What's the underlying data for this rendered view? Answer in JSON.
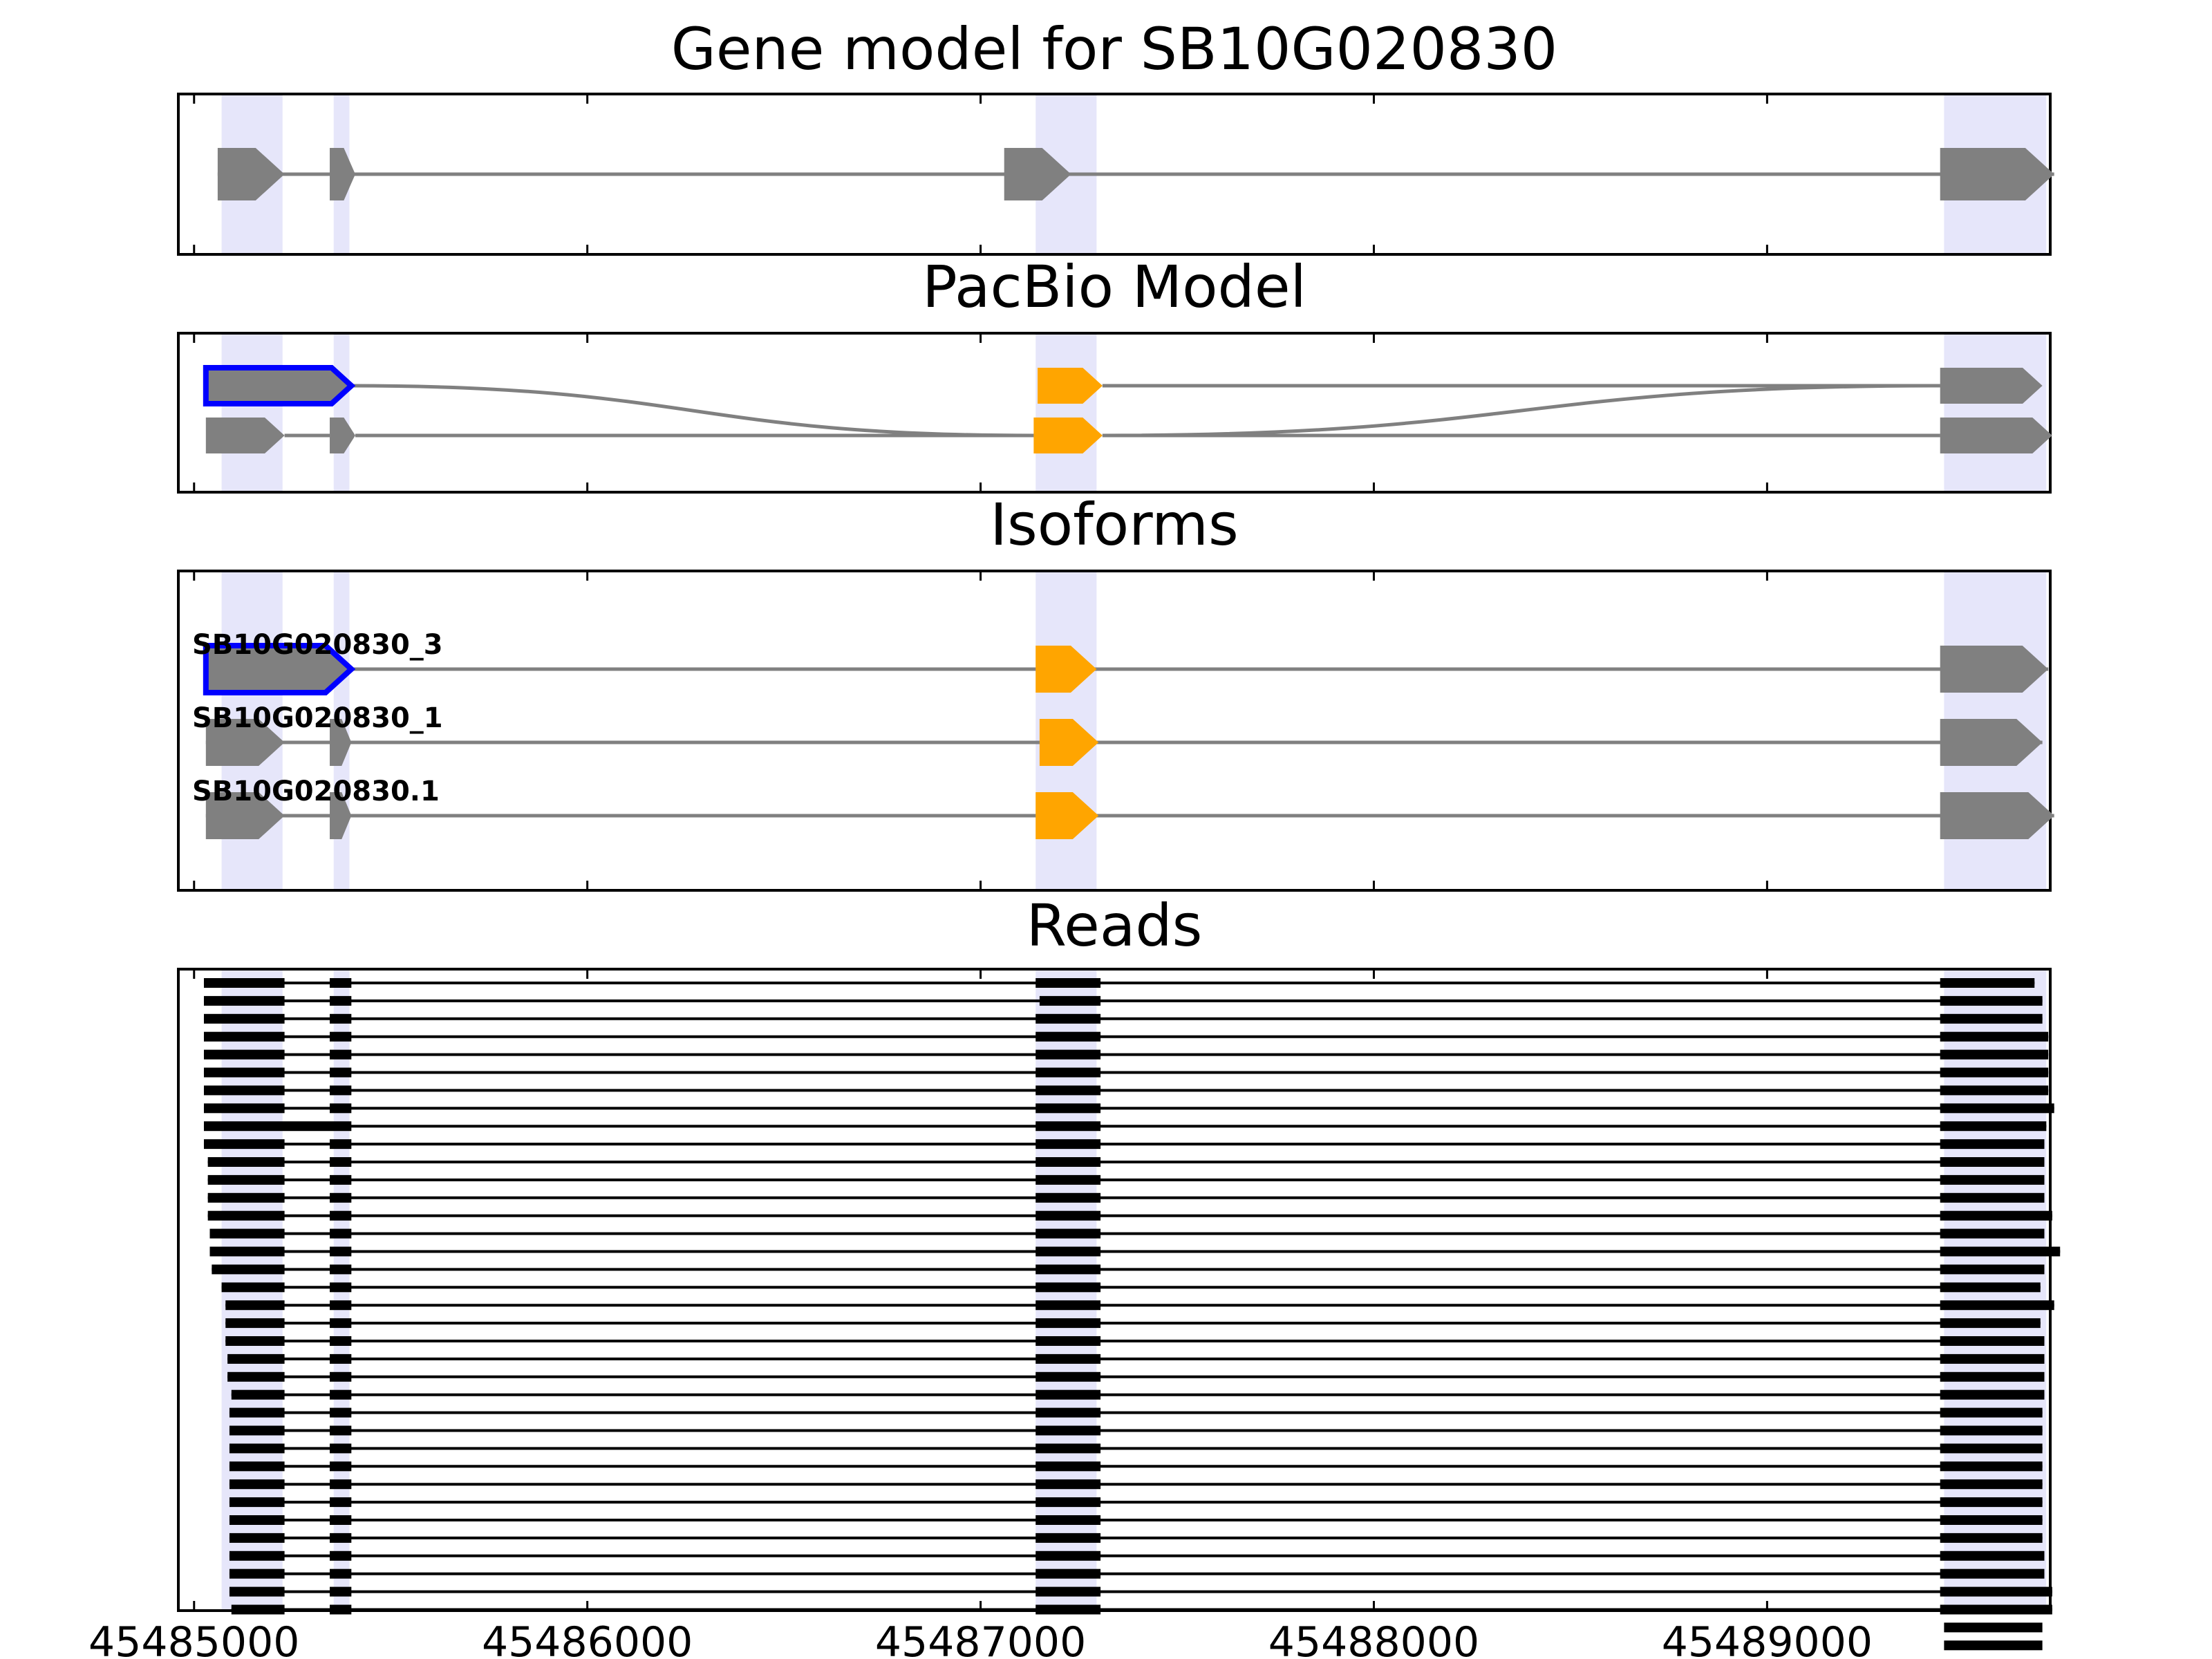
{
  "figure": {
    "x_axis": {
      "min": 45484960,
      "max": 45489720,
      "ticks": [
        45485000,
        45486000,
        45487000,
        45488000,
        45489000
      ],
      "tick_labels": [
        "45485000",
        "45486000",
        "45487000",
        "45488000",
        "45489000"
      ]
    },
    "exon_regions": [
      [
        45485070,
        45485225
      ],
      [
        45485355,
        45485395
      ],
      [
        45487140,
        45487295
      ],
      [
        45489450,
        45489710
      ]
    ],
    "colors": {
      "gene": "#808080",
      "alt_exon": "#ffa500",
      "highlight": "#0000ff",
      "shade": "#e6e6fa",
      "read": "#000000"
    }
  },
  "panels": {
    "gene_model": {
      "title": "Gene model for SB10G020830",
      "strand": "+",
      "exons": [
        [
          45485060,
          45485230
        ],
        [
          45485345,
          45485410
        ],
        [
          45487060,
          45487230
        ],
        [
          45489440,
          45489730
        ]
      ]
    },
    "pacbio": {
      "title": "PacBio Model",
      "rows": [
        {
          "exons": [
            [
              45485030,
              45485400
            ],
            [
              45487145,
              45487310
            ],
            [
              45489440,
              45489700
            ]
          ],
          "highlight": [
            0
          ],
          "alt": [
            1
          ],
          "links": [
            [
              0,
              1,
              1
            ],
            [
              1,
              0,
              2
            ]
          ]
        },
        {
          "exons": [
            [
              45485030,
              45485230
            ],
            [
              45485345,
              45485410
            ],
            [
              45487135,
              45487310
            ],
            [
              45489440,
              45489725
            ]
          ],
          "highlight": [],
          "alt": [
            2
          ],
          "links": [
            [
              0,
              1,
              1
            ]
          ]
        }
      ]
    },
    "isoforms": {
      "title": "Isoforms",
      "rows": [
        {
          "label": "SB10G020830_3",
          "exons": [
            [
              45485030,
              45485400
            ],
            [
              45487140,
              45487295
            ],
            [
              45489440,
              45489715
            ]
          ],
          "highlight": [
            0
          ],
          "alt": [
            1
          ]
        },
        {
          "label": "SB10G020830_1",
          "exons": [
            [
              45485030,
              45485230
            ],
            [
              45485345,
              45485400
            ],
            [
              45487150,
              45487300
            ],
            [
              45489440,
              45489700
            ]
          ],
          "highlight": [],
          "alt": [
            2
          ]
        },
        {
          "label": "SB10G020830.1",
          "exons": [
            [
              45485030,
              45485230
            ],
            [
              45485345,
              45485400
            ],
            [
              45487140,
              45487300
            ],
            [
              45489440,
              45489730
            ]
          ],
          "highlight": [],
          "alt": [
            2
          ]
        }
      ]
    },
    "reads": {
      "title": "Reads",
      "rows": [
        [
          [
            45485025,
            45485230
          ],
          [
            45485345,
            45485400
          ],
          [
            45487140,
            45487305
          ],
          [
            45489440,
            45489680
          ]
        ],
        [
          [
            45485025,
            45485230
          ],
          [
            45485345,
            45485400
          ],
          [
            45487150,
            45487305
          ],
          [
            45489440,
            45489700
          ]
        ],
        [
          [
            45485025,
            45485230
          ],
          [
            45485345,
            45485400
          ],
          [
            45487140,
            45487305
          ],
          [
            45489440,
            45489700
          ]
        ],
        [
          [
            45485025,
            45485230
          ],
          [
            45485345,
            45485400
          ],
          [
            45487140,
            45487305
          ],
          [
            45489440,
            45489715
          ]
        ],
        [
          [
            45485025,
            45485230
          ],
          [
            45485345,
            45485400
          ],
          [
            45487140,
            45487305
          ],
          [
            45489440,
            45489715
          ]
        ],
        [
          [
            45485025,
            45485230
          ],
          [
            45485345,
            45485400
          ],
          [
            45487140,
            45487305
          ],
          [
            45489440,
            45489715
          ]
        ],
        [
          [
            45485025,
            45485230
          ],
          [
            45485345,
            45485400
          ],
          [
            45487140,
            45487305
          ],
          [
            45489440,
            45489715
          ]
        ],
        [
          [
            45485025,
            45485230
          ],
          [
            45485345,
            45485400
          ],
          [
            45487140,
            45487305
          ],
          [
            45489440,
            45489730
          ]
        ],
        [
          [
            45485025,
            45485400
          ],
          [
            45487140,
            45487305
          ],
          [
            45489440,
            45489710
          ]
        ],
        [
          [
            45485025,
            45485230
          ],
          [
            45485345,
            45485400
          ],
          [
            45487140,
            45487305
          ],
          [
            45489440,
            45489705
          ]
        ],
        [
          [
            45485035,
            45485230
          ],
          [
            45485345,
            45485400
          ],
          [
            45487140,
            45487305
          ],
          [
            45489440,
            45489705
          ]
        ],
        [
          [
            45485035,
            45485230
          ],
          [
            45485345,
            45485400
          ],
          [
            45487140,
            45487305
          ],
          [
            45489440,
            45489705
          ]
        ],
        [
          [
            45485035,
            45485230
          ],
          [
            45485345,
            45485400
          ],
          [
            45487140,
            45487305
          ],
          [
            45489440,
            45489705
          ]
        ],
        [
          [
            45485035,
            45485230
          ],
          [
            45485345,
            45485400
          ],
          [
            45487140,
            45487305
          ],
          [
            45489440,
            45489725
          ]
        ],
        [
          [
            45485040,
            45485230
          ],
          [
            45485345,
            45485400
          ],
          [
            45487140,
            45487305
          ],
          [
            45489440,
            45489705
          ]
        ],
        [
          [
            45485040,
            45485230
          ],
          [
            45485345,
            45485400
          ],
          [
            45487140,
            45487305
          ],
          [
            45489440,
            45489745
          ]
        ],
        [
          [
            45485045,
            45485230
          ],
          [
            45485345,
            45485400
          ],
          [
            45487140,
            45487305
          ],
          [
            45489440,
            45489705
          ]
        ],
        [
          [
            45485070,
            45485230
          ],
          [
            45485345,
            45485400
          ],
          [
            45487140,
            45487305
          ],
          [
            45489440,
            45489695
          ]
        ],
        [
          [
            45485080,
            45485230
          ],
          [
            45485345,
            45485400
          ],
          [
            45487140,
            45487305
          ],
          [
            45489440,
            45489730
          ]
        ],
        [
          [
            45485080,
            45485230
          ],
          [
            45485345,
            45485400
          ],
          [
            45487140,
            45487305
          ],
          [
            45489440,
            45489695
          ]
        ],
        [
          [
            45485080,
            45485230
          ],
          [
            45485345,
            45485400
          ],
          [
            45487140,
            45487305
          ],
          [
            45489440,
            45489705
          ]
        ],
        [
          [
            45485085,
            45485230
          ],
          [
            45485345,
            45485400
          ],
          [
            45487140,
            45487305
          ],
          [
            45489440,
            45489705
          ]
        ],
        [
          [
            45485085,
            45485230
          ],
          [
            45485345,
            45485400
          ],
          [
            45487140,
            45487305
          ],
          [
            45489440,
            45489705
          ]
        ],
        [
          [
            45485095,
            45485230
          ],
          [
            45485345,
            45485400
          ],
          [
            45487140,
            45487305
          ],
          [
            45489440,
            45489705
          ]
        ],
        [
          [
            45485090,
            45485230
          ],
          [
            45485345,
            45485400
          ],
          [
            45487140,
            45487305
          ],
          [
            45489440,
            45489700
          ]
        ],
        [
          [
            45485090,
            45485230
          ],
          [
            45485345,
            45485400
          ],
          [
            45487140,
            45487305
          ],
          [
            45489440,
            45489700
          ]
        ],
        [
          [
            45485090,
            45485230
          ],
          [
            45485345,
            45485400
          ],
          [
            45487140,
            45487305
          ],
          [
            45489440,
            45489700
          ]
        ],
        [
          [
            45485090,
            45485230
          ],
          [
            45485345,
            45485400
          ],
          [
            45487140,
            45487305
          ],
          [
            45489440,
            45489700
          ]
        ],
        [
          [
            45485090,
            45485230
          ],
          [
            45485345,
            45485400
          ],
          [
            45487140,
            45487305
          ],
          [
            45489440,
            45489700
          ]
        ],
        [
          [
            45485090,
            45485230
          ],
          [
            45485345,
            45485400
          ],
          [
            45487140,
            45487305
          ],
          [
            45489440,
            45489700
          ]
        ],
        [
          [
            45485090,
            45485230
          ],
          [
            45485345,
            45485400
          ],
          [
            45487140,
            45487305
          ],
          [
            45489440,
            45489700
          ]
        ],
        [
          [
            45485090,
            45485230
          ],
          [
            45485345,
            45485400
          ],
          [
            45487140,
            45487305
          ],
          [
            45489440,
            45489700
          ]
        ],
        [
          [
            45485090,
            45485230
          ],
          [
            45485345,
            45485400
          ],
          [
            45487140,
            45487305
          ],
          [
            45489440,
            45489705
          ]
        ],
        [
          [
            45485090,
            45485230
          ],
          [
            45485345,
            45485400
          ],
          [
            45487140,
            45487305
          ],
          [
            45489440,
            45489705
          ]
        ],
        [
          [
            45485090,
            45485230
          ],
          [
            45485345,
            45485400
          ],
          [
            45487140,
            45487305
          ],
          [
            45489440,
            45489725
          ]
        ],
        [
          [
            45485095,
            45485230
          ],
          [
            45485345,
            45485400
          ],
          [
            45487140,
            45487305
          ],
          [
            45489440,
            45489725
          ]
        ],
        [
          [
            45489450,
            45489700
          ]
        ],
        [
          [
            45489450,
            45489700
          ]
        ]
      ]
    }
  }
}
